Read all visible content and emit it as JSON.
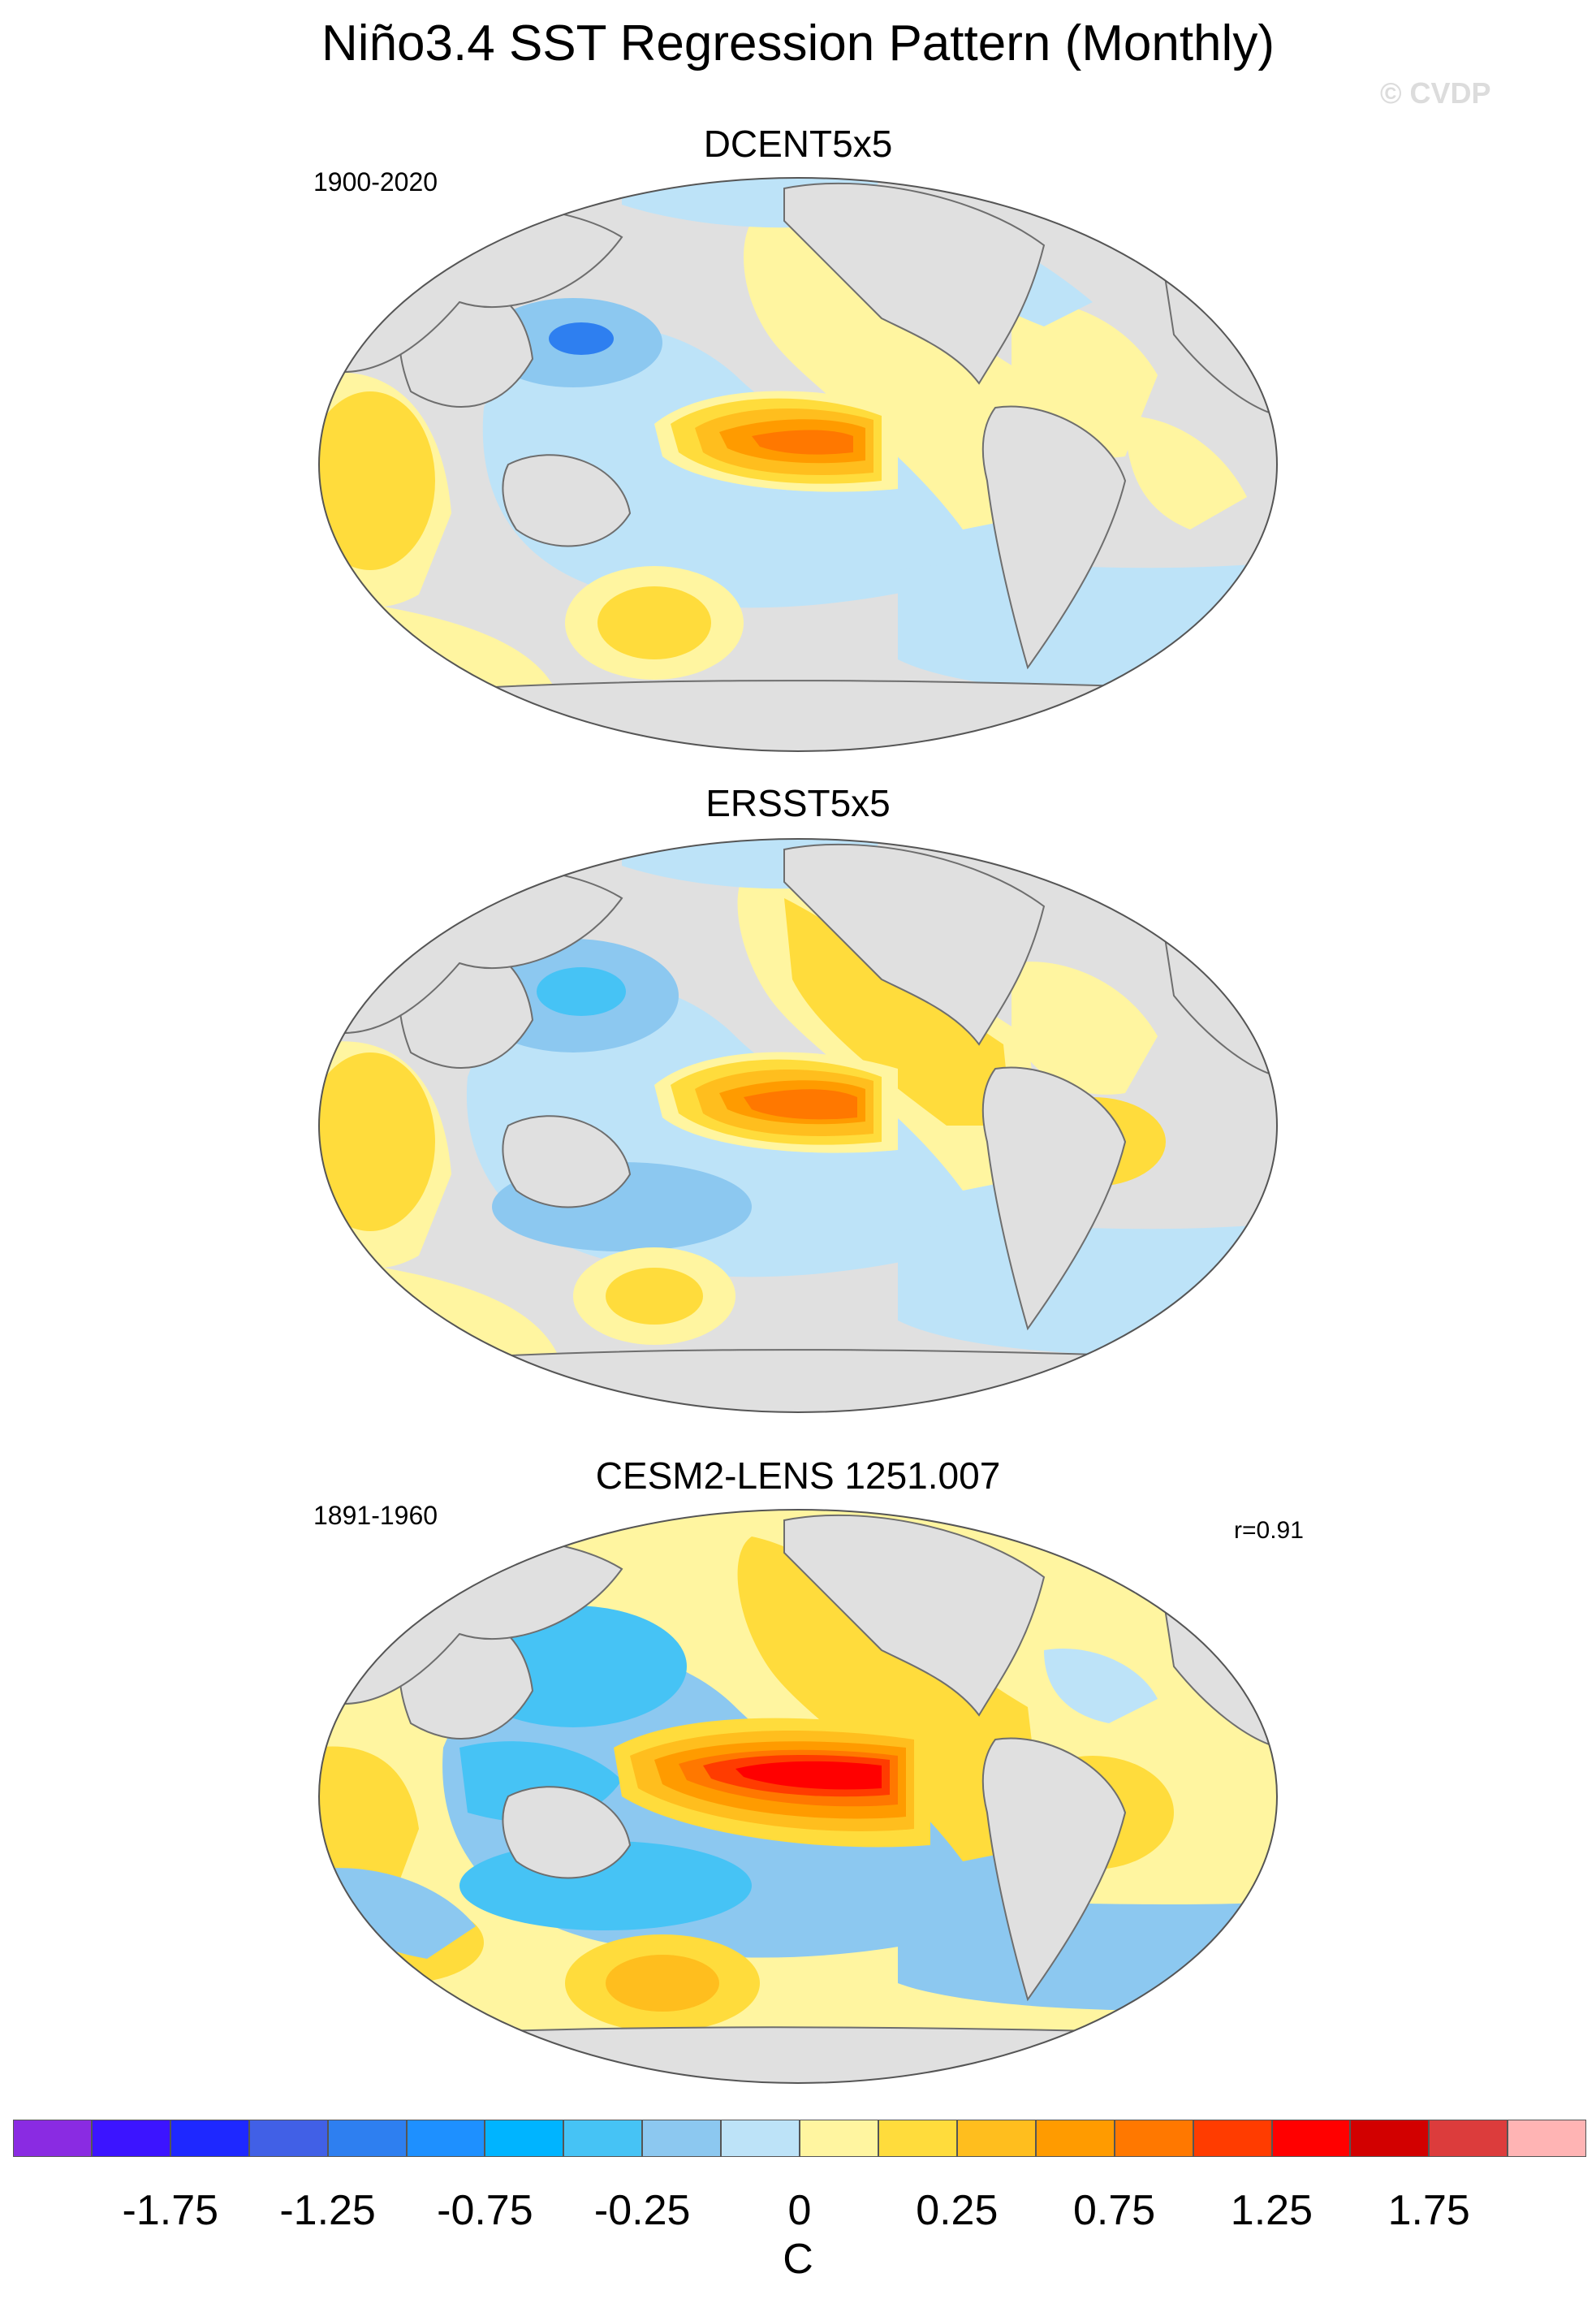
{
  "title": "Niño3.4 SST Regression Pattern (Monthly)",
  "watermark": "© CVDP",
  "panels": [
    {
      "title": "DCENT5x5",
      "period_left": "1900-2020",
      "stat_right": ""
    },
    {
      "title": "ERSST5x5",
      "period_left": "",
      "stat_right": ""
    },
    {
      "title": "CESM2-LENS 1251.007",
      "period_left": "1891-1960",
      "stat_right": "r=0.91"
    }
  ],
  "colorbar": {
    "colors": [
      "#8a2be2",
      "#3c14ff",
      "#1e28ff",
      "#4160e6",
      "#2e7ff0",
      "#1e90ff",
      "#00b4ff",
      "#46c3f5",
      "#8cc8f0",
      "#bde3f8",
      "#fff5a0",
      "#ffdc3c",
      "#ffbe1e",
      "#ff9b00",
      "#ff7800",
      "#ff3c00",
      "#ff0000",
      "#d20000",
      "#dc3c3c",
      "#ffb4b4"
    ],
    "tick_labels": [
      "-1.75",
      "-1.25",
      "-0.75",
      "-0.25",
      "0",
      "0.25",
      "0.75",
      "1.25",
      "1.75"
    ],
    "units": "C"
  },
  "colors": {
    "land": "#e0e0e0",
    "coast": "#6e6e6e",
    "warm_core": "#ff7800",
    "cold_core": "#1e90ff"
  }
}
